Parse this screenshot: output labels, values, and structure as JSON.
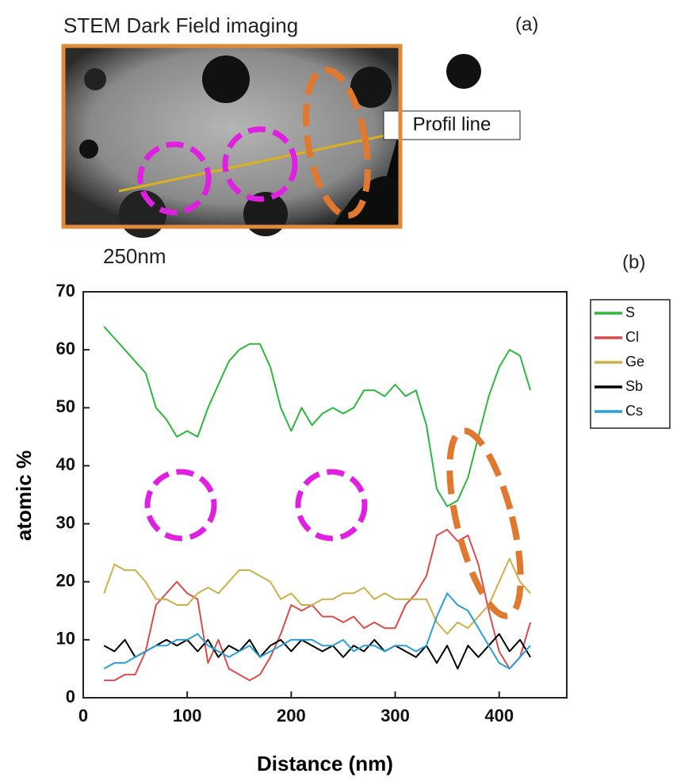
{
  "panel_a": {
    "title": "STEM Dark Field imaging",
    "label": "(a)",
    "annotation": "Profil line",
    "scale_bar": "250nm"
  },
  "chart_data": {
    "type": "line",
    "label": "(b)",
    "xlabel": "Distance (nm)",
    "ylabel": "atomic %",
    "x": [
      20,
      30,
      40,
      50,
      60,
      70,
      80,
      90,
      100,
      110,
      120,
      130,
      140,
      150,
      160,
      170,
      180,
      190,
      200,
      210,
      220,
      230,
      240,
      250,
      260,
      270,
      280,
      290,
      300,
      310,
      320,
      330,
      340,
      350,
      360,
      370,
      380,
      390,
      400,
      410,
      420,
      430
    ],
    "series": [
      {
        "name": "S",
        "color": "#2db83d",
        "values": [
          64,
          62,
          60,
          58,
          56,
          50,
          48,
          45,
          46,
          45,
          50,
          54,
          58,
          60,
          61,
          61,
          57,
          50,
          46,
          50,
          47,
          49,
          50,
          49,
          50,
          53,
          53,
          52,
          54,
          52,
          53,
          47,
          36,
          33,
          34,
          38,
          45,
          52,
          57,
          60,
          59,
          53
        ]
      },
      {
        "name": "Cl",
        "color": "#d94c4c",
        "values": [
          3,
          3,
          4,
          4,
          8,
          16,
          18,
          20,
          18,
          17,
          6,
          10,
          5,
          4,
          3,
          4,
          7,
          11,
          16,
          15,
          16,
          14,
          14,
          13,
          14,
          12,
          13,
          12,
          12,
          16,
          18,
          21,
          28,
          29,
          27,
          28,
          23,
          15,
          8,
          5,
          7,
          13
        ]
      },
      {
        "name": "Ge",
        "color": "#c9b14a",
        "values": [
          18,
          23,
          22,
          22,
          20,
          17,
          17,
          16,
          16,
          18,
          19,
          18,
          20,
          22,
          22,
          21,
          20,
          17,
          18,
          16,
          16,
          17,
          17,
          18,
          18,
          19,
          17,
          18,
          17,
          17,
          17,
          17,
          13,
          11,
          13,
          12,
          14,
          16,
          20,
          24,
          20,
          18
        ]
      },
      {
        "name": "Sb",
        "color": "#000000",
        "values": [
          9,
          8,
          10,
          7,
          8,
          9,
          10,
          9,
          10,
          8,
          10,
          7,
          9,
          8,
          10,
          7,
          9,
          10,
          8,
          10,
          9,
          8,
          9,
          7,
          9,
          8,
          10,
          8,
          9,
          8,
          7,
          9,
          6,
          9,
          5,
          9,
          7,
          9,
          11,
          8,
          10,
          7
        ]
      },
      {
        "name": "Cs",
        "color": "#2a9fd8",
        "values": [
          5,
          6,
          6,
          7,
          8,
          9,
          9,
          10,
          10,
          11,
          9,
          8,
          7,
          8,
          9,
          7,
          8,
          9,
          10,
          10,
          10,
          9,
          9,
          10,
          8,
          9,
          9,
          8,
          9,
          9,
          8,
          9,
          14,
          18,
          16,
          15,
          12,
          9,
          6,
          5,
          7,
          9
        ]
      }
    ],
    "xlim": [
      0,
      465
    ],
    "ylim": [
      0,
      70
    ],
    "xticks": [
      0,
      100,
      200,
      300,
      400
    ],
    "yticks": [
      0,
      10,
      20,
      30,
      40,
      50,
      60,
      70
    ]
  }
}
